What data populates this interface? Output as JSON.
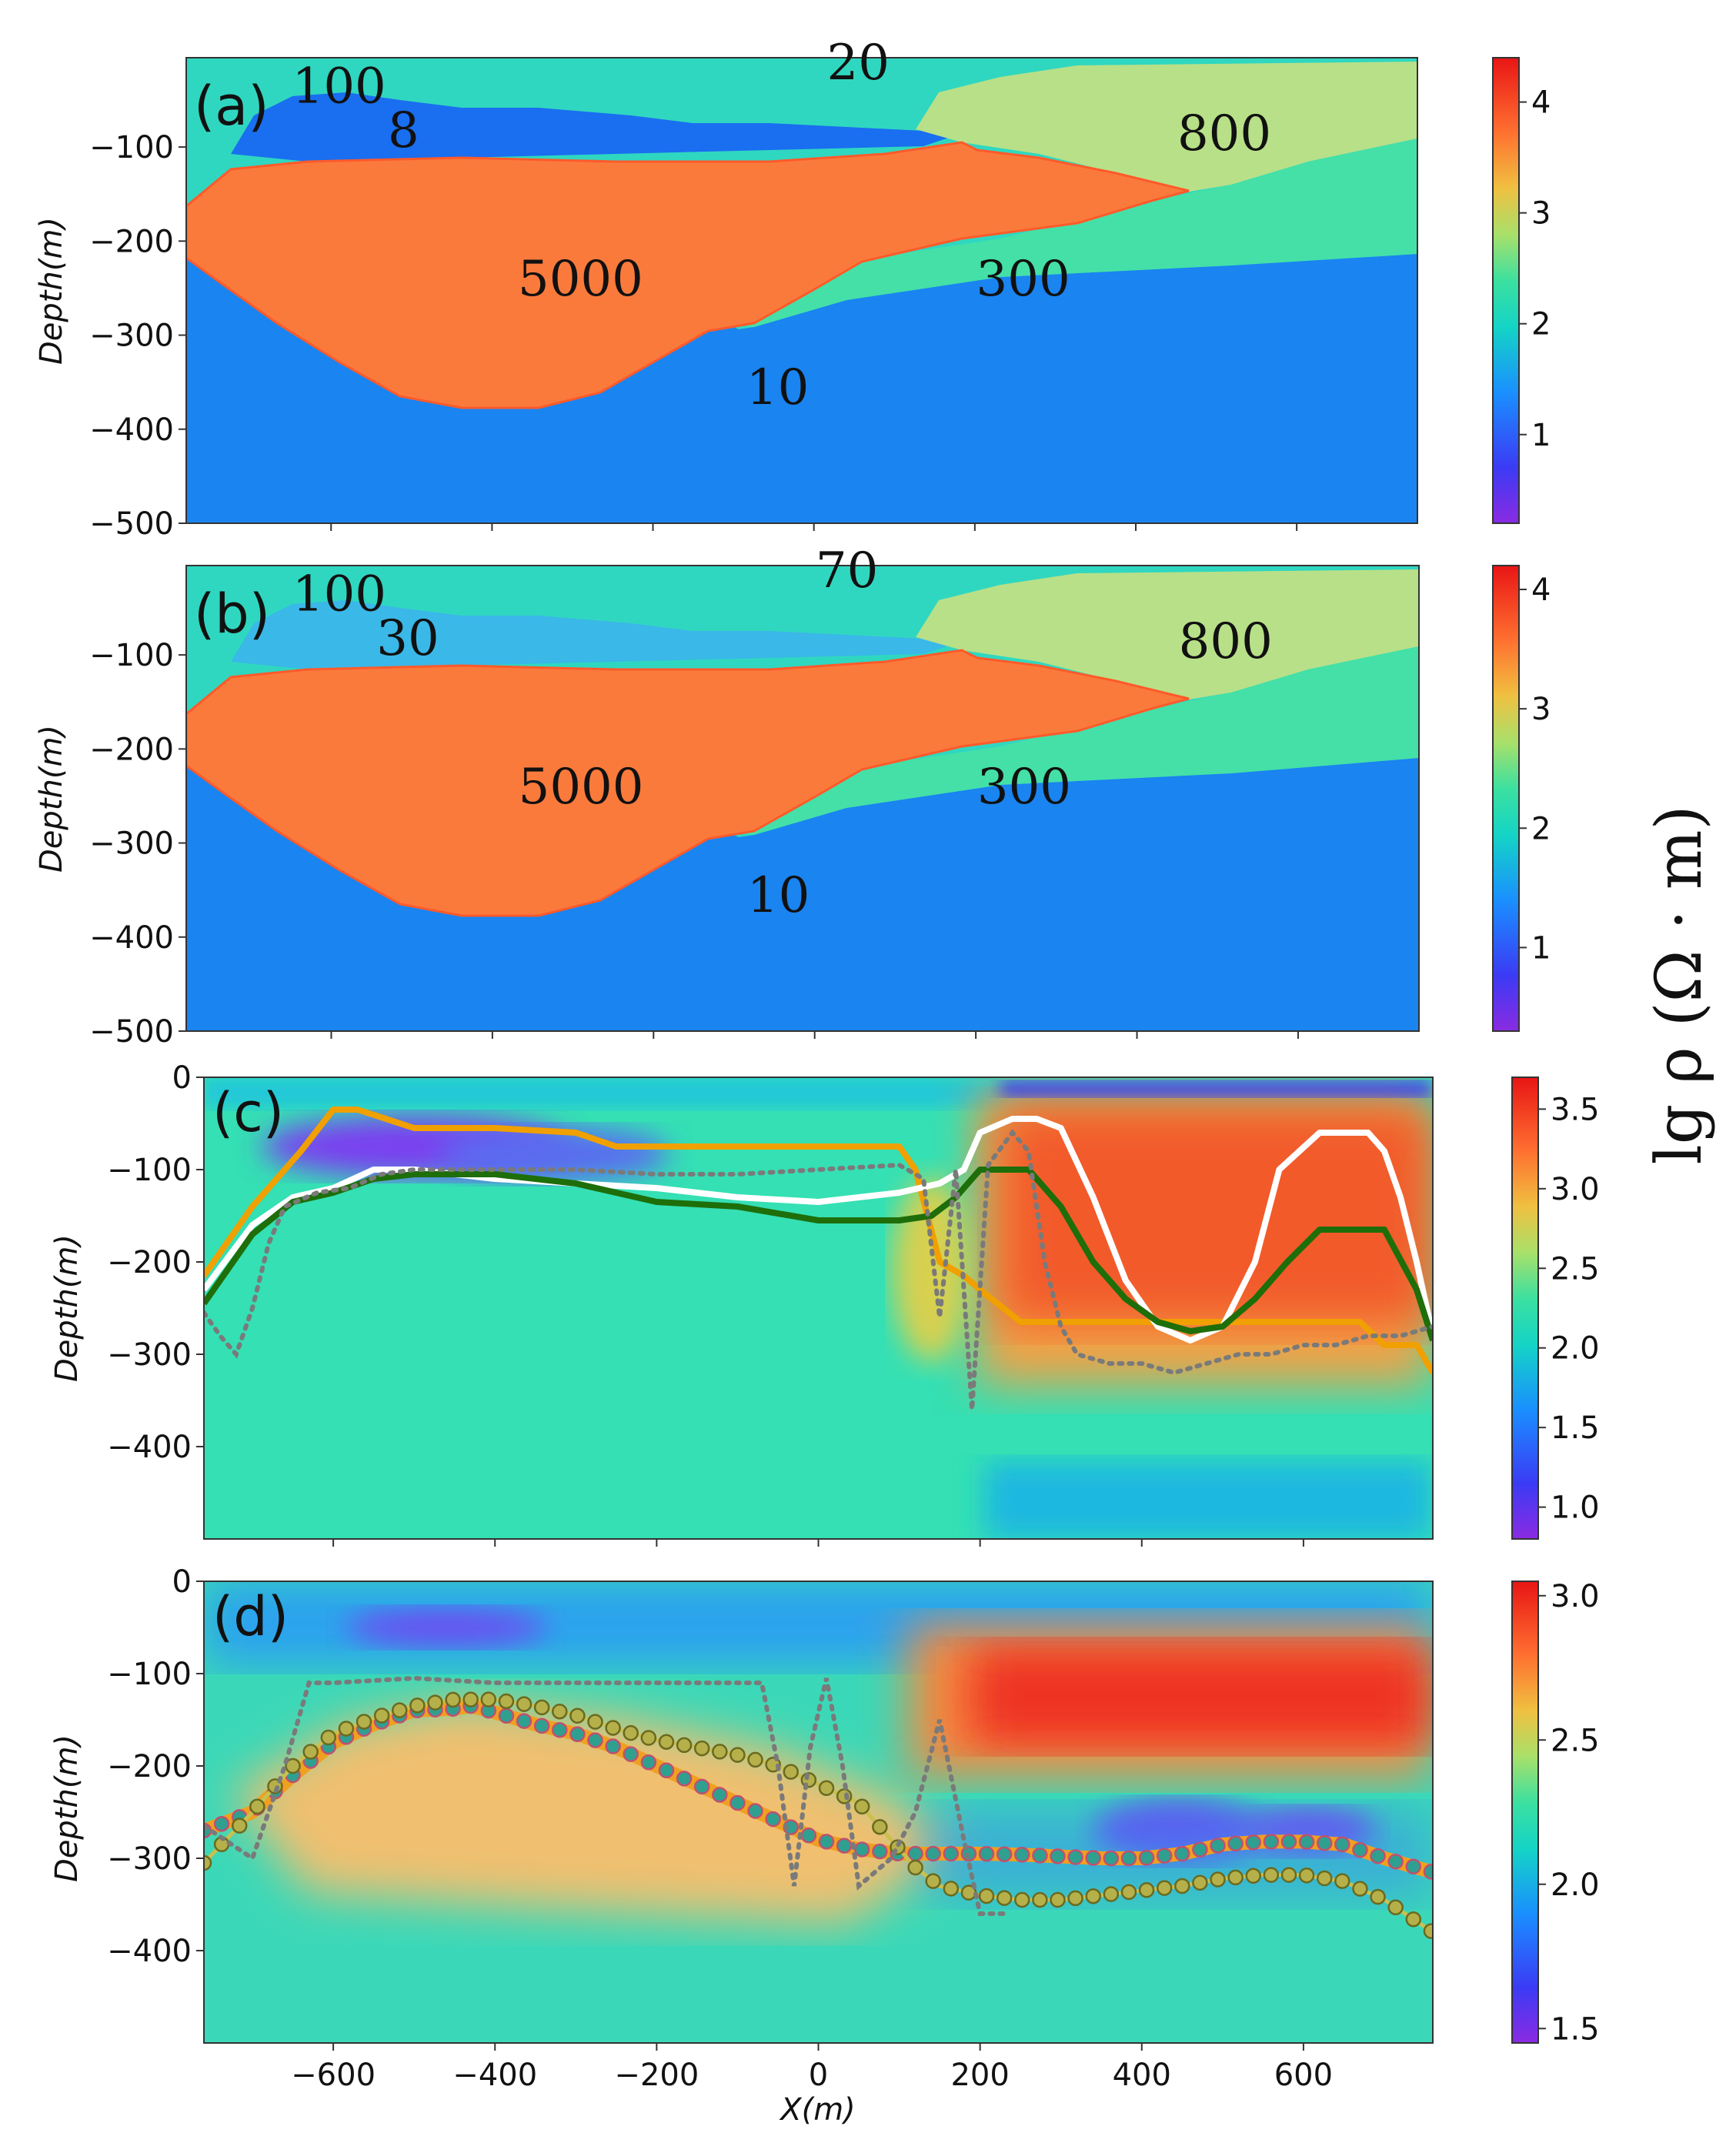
{
  "chart_data": [
    {
      "type": "heatmap",
      "panel_label": "(a)",
      "ylabel": "Depth(m)",
      "xlim": [
        -780,
        750
      ],
      "ylim": [
        -500,
        -5
      ],
      "yticks": [
        "−100",
        "−200",
        "−300",
        "−400",
        "−500"
      ],
      "ytick_values": [
        -100,
        -200,
        -300,
        -400,
        -500
      ],
      "region_labels": [
        {
          "text": "100",
          "x": -590,
          "y": -35
        },
        {
          "text": "20",
          "x": 55,
          "y": -10
        },
        {
          "text": "8",
          "x": -510,
          "y": -82
        },
        {
          "text": "800",
          "x": 510,
          "y": -85
        },
        {
          "text": "5000",
          "x": -290,
          "y": -240
        },
        {
          "text": "300",
          "x": 260,
          "y": -240
        },
        {
          "text": "10",
          "x": -45,
          "y": -355
        }
      ],
      "colorbar": {
        "ticks": [
          "1",
          "2",
          "3",
          "4"
        ],
        "values": [
          1,
          2,
          3,
          4
        ],
        "range": [
          0.2,
          4.4
        ]
      }
    },
    {
      "type": "heatmap",
      "panel_label": "(b)",
      "ylabel": "Depth(m)",
      "xlim": [
        -780,
        750
      ],
      "ylim": [
        -500,
        -5
      ],
      "yticks": [
        "−100",
        "−200",
        "−300",
        "−400",
        "−500"
      ],
      "ytick_values": [
        -100,
        -200,
        -300,
        -400,
        -500
      ],
      "region_labels": [
        {
          "text": "100",
          "x": -590,
          "y": -35
        },
        {
          "text": "70",
          "x": 40,
          "y": -10
        },
        {
          "text": "30",
          "x": -505,
          "y": -82
        },
        {
          "text": "800",
          "x": 510,
          "y": -85
        },
        {
          "text": "5000",
          "x": -290,
          "y": -240
        },
        {
          "text": "300",
          "x": 260,
          "y": -240
        },
        {
          "text": "10",
          "x": -45,
          "y": -355
        }
      ],
      "colorbar": {
        "ticks": [
          "1",
          "2",
          "3",
          "4"
        ],
        "values": [
          1,
          2,
          3,
          4
        ],
        "range": [
          0.3,
          4.2
        ]
      }
    },
    {
      "type": "heatmap",
      "panel_label": "(c)",
      "ylabel": "Depth(m)",
      "xlim": [
        -760,
        760
      ],
      "ylim": [
        -500,
        0
      ],
      "yticks": [
        "0",
        "−100",
        "−200",
        "−300",
        "−400"
      ],
      "ytick_values": [
        0,
        -100,
        -200,
        -300,
        -400
      ],
      "colorbar": {
        "ticks": [
          "1.0",
          "1.5",
          "2.0",
          "2.5",
          "3.0",
          "3.5"
        ],
        "values": [
          1.0,
          1.5,
          2.0,
          2.5,
          3.0,
          3.5
        ],
        "range": [
          0.8,
          3.7
        ]
      },
      "series": [
        {
          "name": "orange",
          "color": "#f0a000",
          "x": [
            -760,
            -700,
            -640,
            -600,
            -570,
            -500,
            -400,
            -300,
            -250,
            -200,
            -100,
            0,
            100,
            120,
            150,
            180,
            200,
            250,
            300,
            400,
            500,
            600,
            670,
            700,
            740,
            760
          ],
          "y": [
            -215,
            -140,
            -80,
            -35,
            -35,
            -55,
            -55,
            -60,
            -75,
            -75,
            -75,
            -75,
            -75,
            -100,
            -200,
            -215,
            -230,
            -265,
            -265,
            -265,
            -265,
            -265,
            -265,
            -290,
            -290,
            -320
          ]
        },
        {
          "name": "white",
          "color": "#ffffff",
          "x": [
            -760,
            -700,
            -650,
            -600,
            -550,
            -500,
            -400,
            -300,
            -200,
            -100,
            0,
            50,
            100,
            150,
            180,
            200,
            240,
            270,
            300,
            340,
            380,
            420,
            460,
            500,
            540,
            570,
            620,
            660,
            680,
            700,
            720,
            740,
            760
          ],
          "y": [
            -230,
            -160,
            -130,
            -120,
            -100,
            -100,
            -110,
            -115,
            -120,
            -130,
            -135,
            -130,
            -125,
            -115,
            -100,
            -60,
            -45,
            -45,
            -55,
            -130,
            -220,
            -270,
            -285,
            -270,
            -200,
            -100,
            -60,
            -60,
            -60,
            -80,
            -130,
            -200,
            -280
          ]
        },
        {
          "name": "green",
          "color": "#1e6e0a",
          "x": [
            -760,
            -700,
            -650,
            -600,
            -550,
            -500,
            -400,
            -300,
            -200,
            -100,
            0,
            100,
            140,
            170,
            200,
            230,
            260,
            300,
            340,
            380,
            420,
            460,
            500,
            540,
            580,
            620,
            660,
            700,
            740,
            760
          ],
          "y": [
            -245,
            -170,
            -135,
            -125,
            -110,
            -105,
            -105,
            -115,
            -135,
            -140,
            -155,
            -155,
            -150,
            -130,
            -100,
            -100,
            -100,
            -140,
            -200,
            -240,
            -265,
            -275,
            -270,
            -240,
            -200,
            -165,
            -165,
            -165,
            -230,
            -285
          ]
        },
        {
          "name": "gray-dotted",
          "color": "#7a7a7a",
          "x": [
            -760,
            -740,
            -720,
            -700,
            -680,
            -660,
            -620,
            -580,
            -540,
            -500,
            -400,
            -300,
            -200,
            -100,
            0,
            100,
            130,
            150,
            170,
            190,
            210,
            240,
            260,
            280,
            300,
            320,
            360,
            400,
            440,
            480,
            520,
            560,
            600,
            640,
            680,
            720,
            760
          ],
          "y": [
            -255,
            -280,
            -300,
            -250,
            -180,
            -140,
            -125,
            -120,
            -105,
            -100,
            -100,
            -100,
            -105,
            -105,
            -100,
            -95,
            -110,
            -260,
            -100,
            -360,
            -95,
            -60,
            -80,
            -200,
            -270,
            -300,
            -310,
            -310,
            -320,
            -310,
            -300,
            -300,
            -290,
            -290,
            -280,
            -280,
            -270
          ]
        }
      ]
    },
    {
      "type": "heatmap",
      "panel_label": "(d)",
      "ylabel": "Depth(m)",
      "xlabel": "X(m)",
      "xlim": [
        -760,
        760
      ],
      "ylim": [
        -500,
        0
      ],
      "xticks": [
        "−600",
        "−400",
        "−200",
        "0",
        "200",
        "400",
        "600"
      ],
      "xtick_values": [
        -600,
        -400,
        -200,
        0,
        200,
        400,
        600
      ],
      "yticks": [
        "0",
        "−100",
        "−200",
        "−300",
        "−400"
      ],
      "ytick_values": [
        0,
        -100,
        -200,
        -300,
        -400
      ],
      "colorbar": {
        "ticks": [
          "1.5",
          "2.0",
          "2.5",
          "3.0"
        ],
        "values": [
          1.5,
          2.0,
          2.5,
          3.0
        ],
        "range": [
          1.45,
          3.05
        ]
      },
      "series": [
        {
          "name": "teal-markers",
          "color": "#2f9f90",
          "x": [
            -760,
            -700,
            -650,
            -600,
            -550,
            -500,
            -450,
            -430,
            -400,
            -350,
            -300,
            -250,
            -200,
            -150,
            -100,
            -50,
            0,
            50,
            100,
            150,
            200,
            250,
            300,
            350,
            400,
            450,
            500,
            550,
            600,
            650,
            700,
            760
          ],
          "y": [
            -270,
            -250,
            -210,
            -175,
            -155,
            -140,
            -138,
            -135,
            -142,
            -155,
            -165,
            -180,
            -200,
            -220,
            -240,
            -260,
            -280,
            -290,
            -295,
            -295,
            -295,
            -296,
            -298,
            -300,
            -300,
            -295,
            -285,
            -282,
            -282,
            -285,
            -300,
            -315
          ]
        },
        {
          "name": "olive-markers",
          "color": "#b5b04a",
          "x": [
            -760,
            -700,
            -650,
            -600,
            -550,
            -500,
            -450,
            -400,
            -350,
            -300,
            -250,
            -200,
            -150,
            -100,
            -50,
            0,
            50,
            80,
            120,
            150,
            200,
            250,
            300,
            350,
            400,
            450,
            500,
            550,
            600,
            650,
            700,
            760
          ],
          "y": [
            -305,
            -250,
            -200,
            -165,
            -148,
            -135,
            -128,
            -128,
            -135,
            -145,
            -160,
            -172,
            -180,
            -188,
            -200,
            -220,
            -240,
            -270,
            -310,
            -330,
            -340,
            -345,
            -345,
            -340,
            -335,
            -330,
            -322,
            -318,
            -318,
            -325,
            -345,
            -380
          ]
        },
        {
          "name": "gray-dotted",
          "color": "#7a7a7a",
          "x": [
            -760,
            -700,
            -660,
            -630,
            -600,
            -500,
            -400,
            -300,
            -200,
            -100,
            -70,
            -50,
            -30,
            -10,
            10,
            30,
            50,
            90,
            120,
            150,
            180,
            200,
            230
          ],
          "y": [
            -265,
            -300,
            -200,
            -110,
            -110,
            -105,
            -110,
            -110,
            -110,
            -110,
            -110,
            -200,
            -330,
            -180,
            -105,
            -200,
            -330,
            -300,
            -250,
            -150,
            -280,
            -360,
            -360
          ]
        }
      ]
    }
  ],
  "shared_colorbar_label": "lg  ρ (Ω · m)"
}
